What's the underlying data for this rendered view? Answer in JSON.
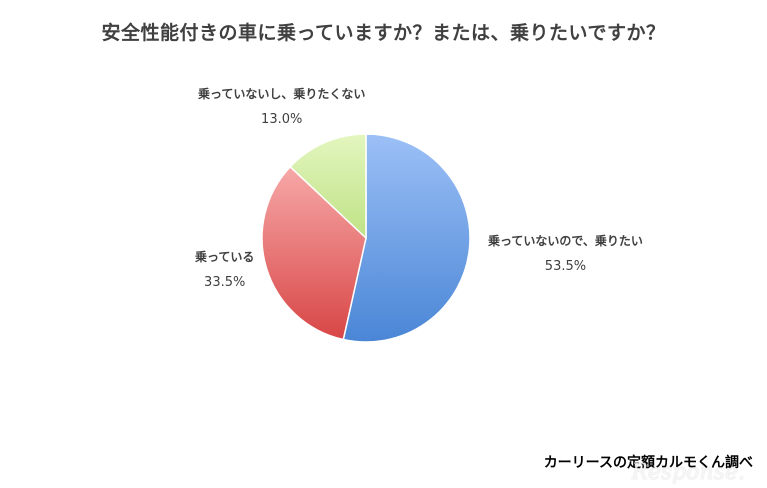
{
  "chart_data": {
    "type": "pie",
    "title": "安全性能付きの車に乗っていますか？または、乗りたいですか？",
    "slices": [
      {
        "label": "乗っていないので、乗りたい",
        "value": 53.5,
        "display": "53.5%",
        "color": "#6e9fe6"
      },
      {
        "label": "乗っている",
        "value": 33.5,
        "display": "33.5%",
        "color": "#e56e6e"
      },
      {
        "label": "乗っていないし、乗りたくない",
        "value": 13.0,
        "display": "13.0%",
        "color": "#cdeb97"
      }
    ],
    "legend": "none"
  },
  "footer": {
    "source": "カーリースの定額カルモくん調べ",
    "watermark": "Response."
  }
}
